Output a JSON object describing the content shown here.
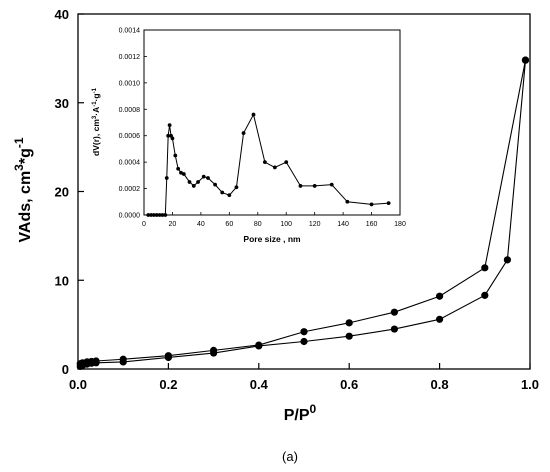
{
  "caption": "(a)",
  "chart_data": [
    {
      "type": "scatter",
      "xlabel": "P/P",
      "xlabel_sup": "0",
      "ylabel": "VAds, cm",
      "ylabel_sup": "3",
      "ylabel_mid": "*g",
      "ylabel_sup2": "-1",
      "xlim": [
        0,
        1.0
      ],
      "ylim": [
        0,
        40
      ],
      "xticks": [
        0.0,
        0.2,
        0.4,
        0.6,
        0.8,
        1.0
      ],
      "yticks": [
        0,
        10,
        20,
        30,
        40
      ],
      "xtick_labels": [
        "0.0",
        "0.2",
        "0.4",
        "0.6",
        "0.8",
        "1.0"
      ],
      "ytick_labels": [
        "0",
        "10",
        "20",
        "30",
        "40"
      ],
      "grid": false,
      "series": [
        {
          "x": [
            0.005,
            0.01,
            0.02,
            0.03,
            0.04,
            0.1,
            0.2,
            0.3,
            0.4,
            0.5,
            0.6,
            0.7,
            0.8,
            0.9,
            0.95,
            0.99
          ],
          "y": [
            0.3,
            0.4,
            0.55,
            0.65,
            0.7,
            0.8,
            1.3,
            1.8,
            2.6,
            3.1,
            3.7,
            4.5,
            5.6,
            8.3,
            12.3,
            34.8
          ]
        },
        {
          "x": [
            0.99,
            0.9,
            0.8,
            0.7,
            0.6,
            0.5,
            0.4,
            0.3,
            0.2,
            0.1,
            0.04,
            0.03,
            0.02,
            0.01,
            0.005
          ],
          "y": [
            34.8,
            11.4,
            8.2,
            6.4,
            5.2,
            4.2,
            2.7,
            2.1,
            1.5,
            1.1,
            0.9,
            0.85,
            0.8,
            0.7,
            0.6
          ]
        }
      ]
    },
    {
      "type": "line",
      "xlabel": "Pore size , nm",
      "ylabel": "dV(r), cm",
      "ylabel_sup": "3",
      "ylabel_mid": "·A",
      "ylabel_sup2": "-1",
      "ylabel_mid2": "·g",
      "ylabel_sup3": "-1",
      "xlim": [
        0,
        180
      ],
      "ylim": [
        0,
        0.0014
      ],
      "xticks": [
        0,
        20,
        40,
        60,
        80,
        100,
        120,
        140,
        160,
        180
      ],
      "yticks": [
        0.0,
        0.0002,
        0.0004,
        0.0006,
        0.0008,
        0.001,
        0.0012,
        0.0014
      ],
      "xtick_labels": [
        "0",
        "20",
        "40",
        "60",
        "80",
        "100",
        "120",
        "140",
        "160",
        "180"
      ],
      "ytick_labels": [
        "0.0000",
        "0.0002",
        "0.0004",
        "0.0006",
        "0.0008",
        "0.0010",
        "0.0012",
        "0.0014"
      ],
      "grid": false,
      "series": [
        {
          "x": [
            3,
            5,
            7,
            9,
            11,
            13,
            15,
            16,
            17,
            18,
            19,
            20,
            22,
            24,
            26,
            28,
            32,
            35,
            38,
            42,
            45,
            50,
            55,
            60,
            65,
            70,
            77,
            85,
            92,
            100,
            110,
            120,
            132,
            143,
            160,
            172
          ],
          "y": [
            0.0,
            0.0,
            0.0,
            0.0,
            0.0,
            0.0,
            0.0,
            0.00028,
            0.0006,
            0.00068,
            0.0006,
            0.00058,
            0.00045,
            0.00035,
            0.00032,
            0.00031,
            0.00025,
            0.00022,
            0.00025,
            0.00029,
            0.00028,
            0.00023,
            0.00017,
            0.00015,
            0.00021,
            0.00062,
            0.00076,
            0.0004,
            0.00036,
            0.0004,
            0.00022,
            0.00022,
            0.00023,
            0.0001,
            8e-05,
            9e-05
          ]
        }
      ]
    }
  ]
}
